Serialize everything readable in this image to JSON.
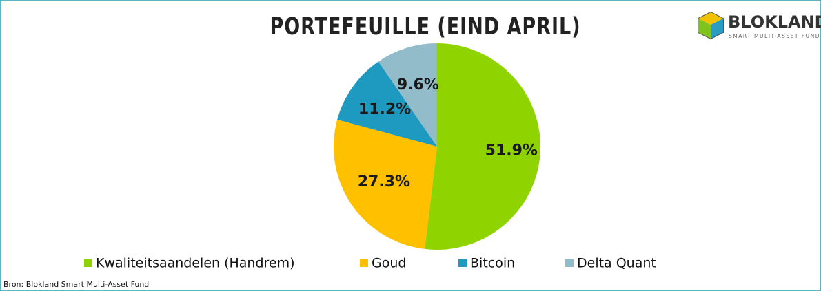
{
  "chart_data": {
    "type": "pie",
    "title": "PORTEFEUILLE (EIND APRIL)",
    "logo": {
      "name": "BLOKLAND",
      "tagline": "SMART MULTI-ASSET FUND"
    },
    "source": "Bron: Blokland Smart Multi-Asset Fund",
    "categories": [
      "Kwaliteitsaandelen (Handrem)",
      "Goud",
      "Bitcoin",
      "Delta Quant"
    ],
    "values": [
      51.9,
      27.3,
      11.2,
      9.6
    ],
    "value_labels": [
      "51.9%",
      "27.3%",
      "11.2%",
      "9.6%"
    ],
    "colors": [
      "#8fd400",
      "#ffc000",
      "#1e9ac0",
      "#93bccb"
    ],
    "legend": "bottom"
  }
}
